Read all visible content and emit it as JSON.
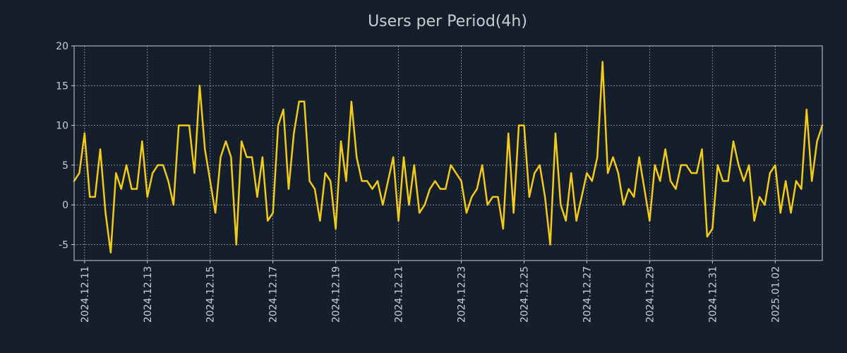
{
  "chart_data": {
    "type": "line",
    "title": "Users per Period(4h)",
    "xlabel": "",
    "ylabel": "",
    "ylim": [
      -7,
      20
    ],
    "yticks": [
      -5,
      0,
      5,
      10,
      15,
      20
    ],
    "xticks": [
      {
        "label": "2024.12.11",
        "t": 2
      },
      {
        "label": "2024.12.13",
        "t": 14
      },
      {
        "label": "2024.12.15",
        "t": 26
      },
      {
        "label": "2024.12.17",
        "t": 38
      },
      {
        "label": "2024.12.19",
        "t": 50
      },
      {
        "label": "2024.12.21",
        "t": 62
      },
      {
        "label": "2024.12.23",
        "t": 74
      },
      {
        "label": "2024.12.25",
        "t": 86
      },
      {
        "label": "2024.12.27",
        "t": 98
      },
      {
        "label": "2024.12.29",
        "t": 110
      },
      {
        "label": "2024.12.31",
        "t": 122
      },
      {
        "label": "2025.01.02",
        "t": 134
      }
    ],
    "grid": true,
    "x_step": "4h",
    "series": [
      {
        "name": "Users",
        "color": "#f2ca19",
        "values": [
          3,
          4,
          9,
          1,
          1,
          7,
          -1,
          -6,
          4,
          2,
          5,
          2,
          2,
          8,
          1,
          4,
          5,
          5,
          3,
          0,
          10,
          10,
          10,
          4,
          15,
          7,
          3,
          -1,
          6,
          8,
          6,
          -5,
          8,
          6,
          6,
          1,
          6,
          -2,
          -1,
          10,
          12,
          2,
          9,
          13,
          13,
          3,
          2,
          -2,
          4,
          3,
          -3,
          8,
          3,
          13,
          6,
          3,
          3,
          2,
          3,
          0,
          3,
          6,
          -2,
          6,
          0,
          5,
          -1,
          0,
          2,
          3,
          2,
          2,
          5,
          4,
          3,
          -1,
          1,
          2,
          5,
          0,
          1,
          1,
          -3,
          9,
          -1,
          10,
          10,
          1,
          4,
          5,
          1,
          -5,
          9,
          0,
          -2,
          4,
          -2,
          1,
          4,
          3,
          6,
          18,
          4,
          6,
          4,
          0,
          2,
          1,
          6,
          2,
          -2,
          5,
          3,
          7,
          3,
          2,
          5,
          5,
          4,
          4,
          7,
          -4,
          -3,
          5,
          3,
          3,
          8,
          5,
          3,
          5,
          -2,
          1,
          0,
          4,
          5,
          -1,
          3,
          -1,
          3,
          2,
          12,
          3,
          8,
          10
        ]
      }
    ]
  }
}
